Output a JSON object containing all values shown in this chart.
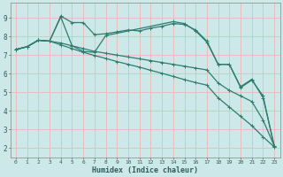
{
  "xlabel": "Humidex (Indice chaleur)",
  "background_color": "#cce8e8",
  "grid_color": "#e8b8b8",
  "line_color": "#2e7d6e",
  "xlim": [
    -0.5,
    23.5
  ],
  "ylim": [
    1.5,
    9.8
  ],
  "yticks": [
    2,
    3,
    4,
    5,
    6,
    7,
    8,
    9
  ],
  "xticks": [
    0,
    1,
    2,
    3,
    4,
    5,
    6,
    7,
    8,
    9,
    10,
    11,
    12,
    13,
    14,
    15,
    16,
    17,
    18,
    19,
    20,
    21,
    22,
    23
  ],
  "series": [
    {
      "x": [
        0,
        1,
        2,
        3,
        4,
        5,
        6,
        7,
        8,
        9,
        10,
        11,
        12,
        13,
        14,
        15,
        16,
        17,
        18,
        19,
        20,
        21,
        22,
        23
      ],
      "y": [
        7.3,
        7.45,
        7.8,
        7.75,
        9.1,
        8.75,
        8.75,
        8.1,
        8.15,
        8.25,
        8.35,
        8.3,
        8.45,
        8.55,
        8.7,
        8.65,
        8.35,
        7.75,
        6.5,
        6.5,
        5.25,
        5.65,
        4.8,
        2.05
      ]
    },
    {
      "x": [
        0,
        1,
        2,
        3,
        4,
        5,
        6,
        7,
        8,
        14,
        15,
        16,
        17,
        18,
        19,
        20,
        21,
        22,
        23
      ],
      "y": [
        7.3,
        7.45,
        7.8,
        7.75,
        9.05,
        7.5,
        7.2,
        7.15,
        8.05,
        8.8,
        8.7,
        8.3,
        7.7,
        6.5,
        6.5,
        5.3,
        5.7,
        4.7,
        2.1
      ]
    },
    {
      "x": [
        0,
        1,
        2,
        3,
        4,
        5,
        6,
        7,
        8,
        9,
        10,
        11,
        12,
        13,
        14,
        15,
        16,
        17,
        18,
        19,
        20,
        21,
        22,
        23
      ],
      "y": [
        7.3,
        7.45,
        7.8,
        7.75,
        7.65,
        7.5,
        7.35,
        7.2,
        7.1,
        7.0,
        6.9,
        6.8,
        6.7,
        6.6,
        6.5,
        6.4,
        6.3,
        6.2,
        5.5,
        5.1,
        4.8,
        4.5,
        3.5,
        2.1
      ]
    },
    {
      "x": [
        0,
        1,
        2,
        3,
        4,
        5,
        6,
        7,
        8,
        9,
        10,
        11,
        12,
        13,
        14,
        15,
        16,
        17,
        18,
        19,
        20,
        21,
        22,
        23
      ],
      "y": [
        7.3,
        7.45,
        7.8,
        7.75,
        7.55,
        7.35,
        7.15,
        6.98,
        6.82,
        6.65,
        6.5,
        6.35,
        6.18,
        6.02,
        5.85,
        5.68,
        5.52,
        5.38,
        4.7,
        4.2,
        3.7,
        3.2,
        2.6,
        2.05
      ]
    }
  ]
}
